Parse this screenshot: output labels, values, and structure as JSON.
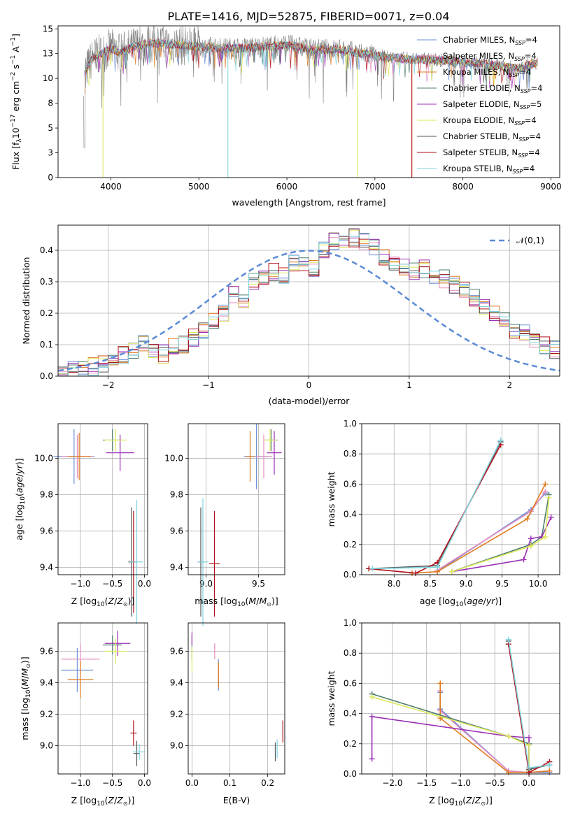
{
  "figure_title": "PLATE=1416, MJD=52875, FIBERID=0071, z=0.04",
  "colors": {
    "Chabrier MILES": "#6d8fd8",
    "Salpeter MILES": "#e58bbf",
    "Kroupa MILES": "#e07b20",
    "Chabrier ELODIE": "#4f7d6f",
    "Salpeter ELODIE": "#9b30b5",
    "Kroupa ELODIE": "#dde85a",
    "Chabrier STELIB": "#555555",
    "Salpeter STELIB": "#b0101a",
    "Kroupa STELIB": "#7fd3de"
  },
  "chart_data": [
    {
      "id": "spectrum",
      "type": "line",
      "title": "PLATE=1416, MJD=52875, FIBERID=0071, z=0.04",
      "xlabel": "wavelength [Angstrom, rest frame]",
      "ylabel": "Flux [f",
      "xlim": [
        3400,
        9100
      ],
      "ylim": [
        0,
        15.3
      ],
      "xticks": [
        4000,
        5000,
        6000,
        7000,
        8000,
        9000
      ],
      "yticks": [
        0.0,
        2.5,
        5.0,
        7.5,
        10.0,
        12.5,
        15.0
      ],
      "legend_position": "top-right",
      "data_x": [
        3700,
        3800,
        3900,
        4000,
        4100,
        4300,
        4500,
        4700,
        5000,
        5300,
        5600,
        6000,
        6300,
        6600,
        7000,
        7300,
        7600,
        8000,
        8300,
        8600,
        8800
      ],
      "data_y": [
        10.5,
        12.2,
        12.5,
        13.0,
        12.6,
        13.3,
        13.6,
        13.4,
        13.2,
        13.0,
        13.1,
        13.4,
        12.9,
        12.9,
        12.3,
        12.0,
        11.9,
        11.7,
        11.4,
        11.0,
        11.5
      ],
      "series": [
        {
          "name": "Chabrier MILES, N",
          "ssp": "=4"
        },
        {
          "name": "Salpeter MILES, N",
          "ssp": "=4"
        },
        {
          "name": "Kroupa MILES, N",
          "ssp": "=4"
        },
        {
          "name": "Chabrier ELODIE, N",
          "ssp": "=4"
        },
        {
          "name": "Salpeter ELODIE, N",
          "ssp": "=5"
        },
        {
          "name": "Kroupa ELODIE, N",
          "ssp": "=4"
        },
        {
          "name": "Chabrier STELIB, N",
          "ssp": "=4"
        },
        {
          "name": "Salpeter STELIB, N",
          "ssp": "=4"
        },
        {
          "name": "Kroupa STELIB, N",
          "ssp": "=4"
        }
      ],
      "grid": false
    },
    {
      "id": "residuals",
      "type": "area",
      "xlabel": "(data-model)/error",
      "ylabel": "Normed distribution",
      "xlim": [
        -2.5,
        2.5
      ],
      "ylim": [
        0,
        0.48
      ],
      "xticks": [
        -2,
        -1,
        0,
        1,
        2
      ],
      "yticks": [
        0.0,
        0.1,
        0.2,
        0.3,
        0.4
      ],
      "bin_edges_start": -2.5,
      "bin_width": 0.1,
      "histogram": [
        0.015,
        0.02,
        0.025,
        0.03,
        0.04,
        0.05,
        0.065,
        0.085,
        0.1,
        0.085,
        0.07,
        0.09,
        0.1,
        0.12,
        0.14,
        0.17,
        0.2,
        0.26,
        0.24,
        0.3,
        0.31,
        0.33,
        0.32,
        0.36,
        0.35,
        0.34,
        0.4,
        0.43,
        0.42,
        0.44,
        0.43,
        0.41,
        0.38,
        0.36,
        0.35,
        0.33,
        0.34,
        0.32,
        0.31,
        0.29,
        0.27,
        0.25,
        0.22,
        0.2,
        0.18,
        0.15,
        0.14,
        0.12,
        0.1,
        0.085
      ],
      "legend": "𝒩(0,1)",
      "legend_position": "top-right",
      "grid": true
    },
    {
      "id": "z-vs-age",
      "type": "scatter",
      "xlabel": "Z [log",
      "ylabel": "age  [log",
      "xlim": [
        -1.35,
        0.05
      ],
      "ylim": [
        9.36,
        10.19
      ],
      "xticks": [
        -1.0,
        -0.5,
        0.0
      ],
      "yticks": [
        9.4,
        9.6,
        9.8,
        10.0
      ],
      "grid": true,
      "points": [
        {
          "model": "Chabrier MILES",
          "x": -1.1,
          "y": 10.01,
          "xerr": 0.32,
          "yerr": 0.15
        },
        {
          "model": "Salpeter MILES",
          "x": -1.05,
          "y": 10.01,
          "xerr": 0.25,
          "yerr": 0.12
        },
        {
          "model": "Kroupa MILES",
          "x": -1.02,
          "y": 10.01,
          "xerr": 0.18,
          "yerr": 0.13
        },
        {
          "model": "Chabrier ELODIE",
          "x": -0.5,
          "y": 10.1,
          "xerr": 0.15,
          "yerr": 0.06
        },
        {
          "model": "Salpeter ELODIE",
          "x": -0.38,
          "y": 10.03,
          "xerr": 0.22,
          "yerr": 0.1
        },
        {
          "model": "Kroupa ELODIE",
          "x": -0.45,
          "y": 10.1,
          "xerr": 0.17,
          "yerr": 0.06
        },
        {
          "model": "Chabrier STELIB",
          "x": -0.2,
          "y": 9.43,
          "xerr": 0.05,
          "yerr": 0.3
        },
        {
          "model": "Salpeter STELIB",
          "x": -0.17,
          "y": 9.43,
          "xerr": 0.04,
          "yerr": 0.28
        },
        {
          "model": "Kroupa STELIB",
          "x": -0.12,
          "y": 9.43,
          "xerr": 0.1,
          "yerr": 0.34
        }
      ]
    },
    {
      "id": "mass-vs-age",
      "type": "scatter",
      "xlabel": "mass [log",
      "ylabel": "",
      "xlim": [
        8.83,
        9.75
      ],
      "ylim": [
        9.36,
        10.19
      ],
      "xticks": [
        9.0,
        9.5
      ],
      "yticks": [
        9.4,
        9.6,
        9.8,
        10.0
      ],
      "grid": true,
      "points": [
        {
          "model": "Chabrier MILES",
          "x": 9.48,
          "y": 10.01,
          "xerr": 0.12,
          "yerr": 0.18
        },
        {
          "model": "Salpeter MILES",
          "x": 9.55,
          "y": 10.01,
          "xerr": 0.08,
          "yerr": 0.12
        },
        {
          "model": "Kroupa MILES",
          "x": 9.42,
          "y": 10.01,
          "xerr": 0.04,
          "yerr": 0.14
        },
        {
          "model": "Chabrier ELODIE",
          "x": 9.62,
          "y": 10.1,
          "xerr": 0.06,
          "yerr": 0.06
        },
        {
          "model": "Salpeter ELODIE",
          "x": 9.65,
          "y": 10.03,
          "xerr": 0.07,
          "yerr": 0.12
        },
        {
          "model": "Kroupa ELODIE",
          "x": 9.61,
          "y": 10.1,
          "xerr": 0.06,
          "yerr": 0.06
        },
        {
          "model": "Chabrier STELIB",
          "x": 8.95,
          "y": 9.43,
          "xerr": 0.03,
          "yerr": 0.3
        },
        {
          "model": "Salpeter STELIB",
          "x": 9.08,
          "y": 9.42,
          "xerr": 0.05,
          "yerr": 0.29
        },
        {
          "model": "Kroupa STELIB",
          "x": 8.97,
          "y": 9.43,
          "xerr": 0.05,
          "yerr": 0.35
        }
      ]
    },
    {
      "id": "age-vs-weight",
      "type": "line",
      "xlabel": "age  [log",
      "ylabel": "mass weight",
      "xlim": [
        7.55,
        10.3
      ],
      "ylim": [
        0,
        1.0
      ],
      "xticks": [
        8.0,
        8.5,
        9.0,
        9.5,
        10.0
      ],
      "yticks": [
        0.0,
        0.2,
        0.4,
        0.6,
        0.8,
        1.0
      ],
      "grid": true,
      "series": [
        {
          "model": "Chabrier MILES",
          "x": [
            8.6,
            9.9,
            10.1
          ],
          "y": [
            0.02,
            0.43,
            0.54
          ]
        },
        {
          "model": "Salpeter MILES",
          "x": [
            8.6,
            9.9,
            10.1
          ],
          "y": [
            0.03,
            0.42,
            0.55
          ]
        },
        {
          "model": "Kroupa MILES",
          "x": [
            8.25,
            8.6,
            9.85,
            10.1
          ],
          "y": [
            0.01,
            0.02,
            0.37,
            0.6
          ]
        },
        {
          "model": "Chabrier ELODIE",
          "x": [
            8.8,
            9.9,
            10.05,
            10.15
          ],
          "y": [
            0.02,
            0.2,
            0.25,
            0.53
          ]
        },
        {
          "model": "Salpeter ELODIE",
          "x": [
            8.8,
            9.8,
            9.9,
            10.05,
            10.18
          ],
          "y": [
            0.02,
            0.1,
            0.24,
            0.25,
            0.38
          ]
        },
        {
          "model": "Kroupa ELODIE",
          "x": [
            8.8,
            9.9,
            10.1,
            10.15
          ],
          "y": [
            0.02,
            0.19,
            0.25,
            0.51
          ]
        },
        {
          "model": "Chabrier STELIB",
          "x": [
            7.65,
            8.6,
            9.48
          ],
          "y": [
            0.04,
            0.06,
            0.88
          ]
        },
        {
          "model": "Salpeter STELIB",
          "x": [
            7.65,
            8.3,
            8.6,
            9.48
          ],
          "y": [
            0.04,
            0.01,
            0.08,
            0.86
          ]
        },
        {
          "model": "Kroupa STELIB",
          "x": [
            7.7,
            8.6,
            9.48
          ],
          "y": [
            0.04,
            0.05,
            0.89
          ]
        }
      ]
    },
    {
      "id": "z-vs-mass",
      "type": "scatter",
      "xlabel": "Z [log",
      "ylabel": "mass [log",
      "xlim": [
        -1.35,
        0.05
      ],
      "ylim": [
        8.82,
        9.78
      ],
      "xticks": [
        -1.0,
        -0.5,
        0.0
      ],
      "yticks": [
        9.0,
        9.2,
        9.4,
        9.6
      ],
      "grid": true,
      "points": [
        {
          "model": "Chabrier MILES",
          "x": -1.05,
          "y": 9.48,
          "xerr": 0.25,
          "yerr": 0.14
        },
        {
          "model": "Salpeter MILES",
          "x": -1.0,
          "y": 9.55,
          "xerr": 0.3,
          "yerr": 0.1
        },
        {
          "model": "Kroupa MILES",
          "x": -1.0,
          "y": 9.42,
          "xerr": 0.2,
          "yerr": 0.12
        },
        {
          "model": "Chabrier ELODIE",
          "x": -0.5,
          "y": 9.64,
          "xerr": 0.15,
          "yerr": 0.06
        },
        {
          "model": "Salpeter ELODIE",
          "x": -0.42,
          "y": 9.65,
          "xerr": 0.2,
          "yerr": 0.08
        },
        {
          "model": "Kroupa ELODIE",
          "x": -0.45,
          "y": 9.6,
          "xerr": 0.17,
          "yerr": 0.08
        },
        {
          "model": "Chabrier STELIB",
          "x": -0.12,
          "y": 8.95,
          "xerr": 0.05,
          "yerr": 0.08
        },
        {
          "model": "Salpeter STELIB",
          "x": -0.17,
          "y": 9.08,
          "xerr": 0.05,
          "yerr": 0.08
        },
        {
          "model": "Kroupa STELIB",
          "x": -0.08,
          "y": 8.96,
          "xerr": 0.1,
          "yerr": 0.05
        }
      ]
    },
    {
      "id": "ebv-vs-mass",
      "type": "scatter",
      "xlabel": "E(B-V)",
      "ylabel": "",
      "xlim": [
        -0.01,
        0.245
      ],
      "ylim": [
        8.82,
        9.78
      ],
      "xticks": [
        0.0,
        0.1,
        0.2
      ],
      "yticks": [
        9.0,
        9.2,
        9.4,
        9.6
      ],
      "grid": true,
      "points": [
        {
          "model": "Chabrier MILES",
          "x": 0.07,
          "y": 9.45,
          "xerr": 0.0,
          "yerr": 0.1
        },
        {
          "model": "Salpeter MILES",
          "x": 0.06,
          "y": 9.6,
          "xerr": 0.0,
          "yerr": 0.05
        },
        {
          "model": "Kroupa MILES",
          "x": 0.07,
          "y": 9.45,
          "xerr": 0.0,
          "yerr": 0.08
        },
        {
          "model": "Chabrier ELODIE",
          "x": 0.0,
          "y": 9.62,
          "xerr": 0.0,
          "yerr": 0.08
        },
        {
          "model": "Salpeter ELODIE",
          "x": 0.0,
          "y": 9.68,
          "xerr": 0.0,
          "yerr": 0.04
        },
        {
          "model": "Kroupa ELODIE",
          "x": 0.0,
          "y": 9.55,
          "xerr": 0.0,
          "yerr": 0.08
        },
        {
          "model": "Chabrier STELIB",
          "x": 0.22,
          "y": 8.96,
          "xerr": 0.0,
          "yerr": 0.06
        },
        {
          "model": "Salpeter STELIB",
          "x": 0.24,
          "y": 9.09,
          "xerr": 0.0,
          "yerr": 0.07
        },
        {
          "model": "Kroupa STELIB",
          "x": 0.225,
          "y": 8.98,
          "xerr": 0.0,
          "yerr": 0.06
        }
      ]
    },
    {
      "id": "z-vs-weight",
      "type": "line",
      "xlabel": "Z [log",
      "ylabel": "mass weight",
      "xlim": [
        -2.45,
        0.45
      ],
      "ylim": [
        0,
        1.0
      ],
      "xticks": [
        -2.0,
        -1.5,
        -1.0,
        -0.5,
        0.0
      ],
      "yticks": [
        0.0,
        0.2,
        0.4,
        0.6,
        0.8,
        1.0
      ],
      "grid": true,
      "series": [
        {
          "model": "Chabrier MILES",
          "x": [
            -1.3,
            -1.3,
            -0.3,
            0.0,
            0.3
          ],
          "y": [
            0.54,
            0.43,
            0.02,
            0.01,
            0.01
          ]
        },
        {
          "model": "Salpeter MILES",
          "x": [
            -1.3,
            -1.3,
            -0.3,
            0.0,
            0.3
          ],
          "y": [
            0.55,
            0.42,
            0.02,
            0.01,
            0.02
          ]
        },
        {
          "model": "Kroupa MILES",
          "x": [
            -1.3,
            -1.3,
            -0.3,
            0.0,
            0.3
          ],
          "y": [
            0.6,
            0.37,
            0.01,
            0.01,
            0.02
          ]
        },
        {
          "model": "Chabrier ELODIE",
          "x": [
            -2.3,
            -0.3,
            0.0,
            0.0
          ],
          "y": [
            0.53,
            0.25,
            0.2,
            0.02
          ]
        },
        {
          "model": "Salpeter ELODIE",
          "x": [
            -2.3,
            -2.3,
            -0.3,
            0.0,
            0.0
          ],
          "y": [
            0.1,
            0.38,
            0.25,
            0.24,
            0.02
          ]
        },
        {
          "model": "Kroupa ELODIE",
          "x": [
            -2.3,
            -0.3,
            0.0,
            0.0
          ],
          "y": [
            0.51,
            0.25,
            0.19,
            0.02
          ]
        },
        {
          "model": "Chabrier STELIB",
          "x": [
            -0.3,
            0.0,
            0.3
          ],
          "y": [
            0.88,
            0.03,
            0.06
          ]
        },
        {
          "model": "Salpeter STELIB",
          "x": [
            -0.3,
            0.0,
            0.3
          ],
          "y": [
            0.86,
            0.01,
            0.08
          ]
        },
        {
          "model": "Kroupa STELIB",
          "x": [
            -0.3,
            0.0,
            0.3
          ],
          "y": [
            0.89,
            0.04,
            0.06
          ]
        }
      ]
    }
  ]
}
